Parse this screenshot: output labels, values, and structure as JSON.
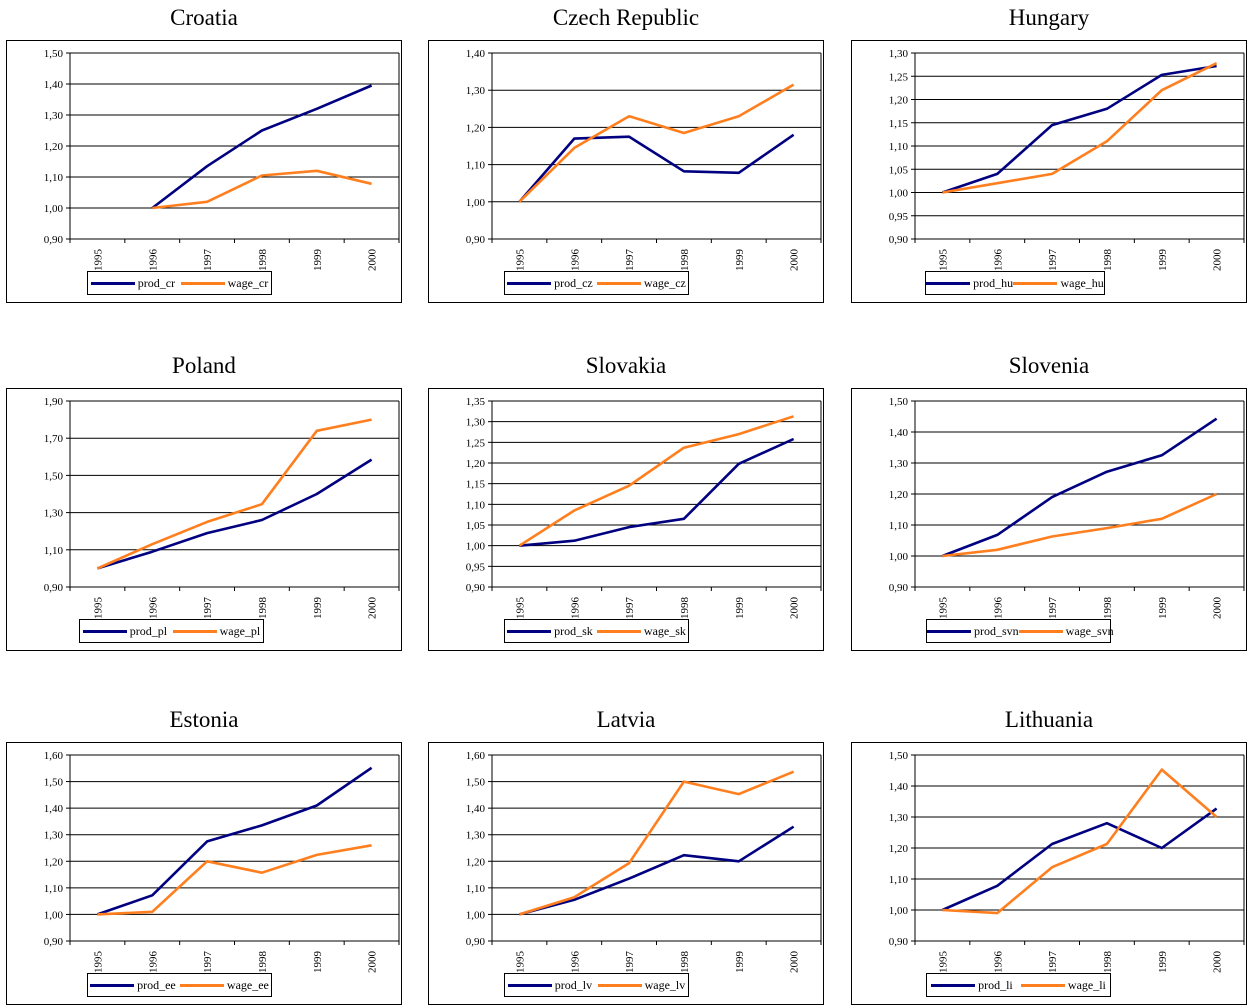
{
  "chart_data": [
    {
      "type": "line",
      "title": "Croatia",
      "x": [
        "1995",
        "1996",
        "1997",
        "1998",
        "1999",
        "2000"
      ],
      "ylim": [
        0.9,
        1.5
      ],
      "yticks": [
        0.9,
        1.0,
        1.1,
        1.2,
        1.3,
        1.4,
        1.5
      ],
      "ytick_labels": [
        "0,90",
        "1,00",
        "1,10",
        "1,20",
        "1,30",
        "1,40",
        "1,50"
      ],
      "grid": true,
      "legend": "bottom",
      "series": [
        {
          "name": "prod_cr",
          "color": "#000080",
          "values": [
            null,
            1.0,
            1.135,
            1.25,
            1.32,
            1.395
          ]
        },
        {
          "name": "wage_cr",
          "color": "#FF7F1F",
          "values": [
            null,
            1.0,
            1.02,
            1.105,
            1.12,
            1.078
          ]
        }
      ]
    },
    {
      "type": "line",
      "title": "Czech Republic",
      "x": [
        "1995",
        "1996",
        "1997",
        "1998",
        "1999",
        "2000"
      ],
      "ylim": [
        0.9,
        1.4
      ],
      "yticks": [
        0.9,
        1.0,
        1.1,
        1.2,
        1.3,
        1.4
      ],
      "ytick_labels": [
        "0,90",
        "1,00",
        "1,10",
        "1,20",
        "1,30",
        "1,40"
      ],
      "grid": true,
      "legend": "bottom",
      "series": [
        {
          "name": "prod_cz",
          "color": "#000080",
          "values": [
            1.0,
            1.17,
            1.175,
            1.082,
            1.078,
            1.18
          ]
        },
        {
          "name": "wage_cz",
          "color": "#FF7F1F",
          "values": [
            1.0,
            1.145,
            1.23,
            1.185,
            1.23,
            1.315
          ]
        }
      ]
    },
    {
      "type": "line",
      "title": "Hungary",
      "x": [
        "1995",
        "1996",
        "1997",
        "1998",
        "1999",
        "2000"
      ],
      "ylim": [
        0.9,
        1.3
      ],
      "yticks": [
        0.9,
        0.95,
        1.0,
        1.05,
        1.1,
        1.15,
        1.2,
        1.25,
        1.3
      ],
      "ytick_labels": [
        "0,90",
        "0,95",
        "1,00",
        "1,05",
        "1,10",
        "1,15",
        "1,20",
        "1,25",
        "1,30"
      ],
      "grid": true,
      "legend": "bottom",
      "series": [
        {
          "name": "prod_hu",
          "color": "#000080",
          "values": [
            1.0,
            1.04,
            1.145,
            1.18,
            1.253,
            1.272
          ]
        },
        {
          "name": "wage_hu",
          "color": "#FF7F1F",
          "values": [
            1.0,
            1.02,
            1.04,
            1.11,
            1.22,
            1.278
          ]
        }
      ]
    },
    {
      "type": "line",
      "title": "Poland",
      "x": [
        "1995",
        "1996",
        "1997",
        "1998",
        "1999",
        "2000"
      ],
      "ylim": [
        0.9,
        1.9
      ],
      "yticks": [
        0.9,
        1.1,
        1.3,
        1.5,
        1.7,
        1.9
      ],
      "ytick_labels": [
        "0,90",
        "1,10",
        "1,30",
        "1,50",
        "1,70",
        "1,90"
      ],
      "grid": true,
      "legend": "bottom",
      "series": [
        {
          "name": "prod_pl",
          "color": "#000080",
          "values": [
            1.0,
            1.09,
            1.19,
            1.26,
            1.4,
            1.585
          ]
        },
        {
          "name": "wage_pl",
          "color": "#FF7F1F",
          "values": [
            1.0,
            1.13,
            1.25,
            1.345,
            1.74,
            1.8
          ]
        }
      ]
    },
    {
      "type": "line",
      "title": "Slovakia",
      "x": [
        "1995",
        "1996",
        "1997",
        "1998",
        "1999",
        "2000"
      ],
      "ylim": [
        0.9,
        1.35
      ],
      "yticks": [
        0.9,
        0.95,
        1.0,
        1.05,
        1.1,
        1.15,
        1.2,
        1.25,
        1.3,
        1.35
      ],
      "ytick_labels": [
        "0,90",
        "0,95",
        "1,00",
        "1,05",
        "1,10",
        "1,15",
        "1,20",
        "1,25",
        "1,30",
        "1,35"
      ],
      "grid": true,
      "legend": "bottom",
      "series": [
        {
          "name": "prod_sk",
          "color": "#000080",
          "values": [
            1.0,
            1.012,
            1.045,
            1.065,
            1.198,
            1.258
          ]
        },
        {
          "name": "wage_sk",
          "color": "#FF7F1F",
          "values": [
            1.0,
            1.085,
            1.145,
            1.237,
            1.27,
            1.313
          ]
        }
      ]
    },
    {
      "type": "line",
      "title": "Slovenia",
      "x": [
        "1995",
        "1996",
        "1997",
        "1998",
        "1999",
        "2000"
      ],
      "ylim": [
        0.9,
        1.5
      ],
      "yticks": [
        0.9,
        1.0,
        1.1,
        1.2,
        1.3,
        1.4,
        1.5
      ],
      "ytick_labels": [
        "0,90",
        "1,00",
        "1,10",
        "1,20",
        "1,30",
        "1,40",
        "1,50"
      ],
      "grid": true,
      "legend": "bottom",
      "series": [
        {
          "name": "prod_svn",
          "color": "#000080",
          "values": [
            1.0,
            1.068,
            1.19,
            1.272,
            1.325,
            1.443
          ]
        },
        {
          "name": "wage_svn",
          "color": "#FF7F1F",
          "values": [
            1.0,
            1.02,
            1.063,
            1.09,
            1.12,
            1.2
          ]
        }
      ]
    },
    {
      "type": "line",
      "title": "Estonia",
      "x": [
        "1995",
        "1996",
        "1997",
        "1998",
        "1999",
        "2000"
      ],
      "ylim": [
        0.9,
        1.6
      ],
      "yticks": [
        0.9,
        1.0,
        1.1,
        1.2,
        1.3,
        1.4,
        1.5,
        1.6
      ],
      "ytick_labels": [
        "0,90",
        "1,00",
        "1,10",
        "1,20",
        "1,30",
        "1,40",
        "1,50",
        "1,60"
      ],
      "grid": true,
      "legend": "bottom",
      "series": [
        {
          "name": "prod_ee",
          "color": "#000080",
          "values": [
            1.0,
            1.072,
            1.275,
            1.335,
            1.41,
            1.552
          ]
        },
        {
          "name": "wage_ee",
          "color": "#FF7F1F",
          "values": [
            1.0,
            1.01,
            1.2,
            1.157,
            1.224,
            1.26
          ]
        }
      ]
    },
    {
      "type": "line",
      "title": "Latvia",
      "x": [
        "1995",
        "1996",
        "1997",
        "1998",
        "1999",
        "2000"
      ],
      "ylim": [
        0.9,
        1.6
      ],
      "yticks": [
        0.9,
        1.0,
        1.1,
        1.2,
        1.3,
        1.4,
        1.5,
        1.6
      ],
      "ytick_labels": [
        "0,90",
        "1,00",
        "1,10",
        "1,20",
        "1,30",
        "1,40",
        "1,50",
        "1,60"
      ],
      "grid": true,
      "legend": "bottom",
      "series": [
        {
          "name": "prod_lv",
          "color": "#000080",
          "values": [
            1.0,
            1.055,
            1.135,
            1.223,
            1.2,
            1.33
          ]
        },
        {
          "name": "wage_lv",
          "color": "#FF7F1F",
          "values": [
            1.0,
            1.065,
            1.193,
            1.5,
            1.453,
            1.537
          ]
        }
      ]
    },
    {
      "type": "line",
      "title": "Lithuania",
      "x": [
        "1995",
        "1996",
        "1997",
        "1998",
        "1999",
        "2000"
      ],
      "ylim": [
        0.9,
        1.5
      ],
      "yticks": [
        0.9,
        1.0,
        1.1,
        1.2,
        1.3,
        1.4,
        1.5
      ],
      "ytick_labels": [
        "0,90",
        "1,00",
        "1,10",
        "1,20",
        "1,30",
        "1,40",
        "1,50"
      ],
      "grid": true,
      "legend": "bottom",
      "series": [
        {
          "name": "prod_li",
          "color": "#000080",
          "values": [
            1.0,
            1.078,
            1.213,
            1.28,
            1.2,
            1.327
          ]
        },
        {
          "name": "wage_li",
          "color": "#FF7F1F",
          "values": [
            1.0,
            0.99,
            1.138,
            1.213,
            1.453,
            1.3
          ]
        }
      ]
    }
  ]
}
